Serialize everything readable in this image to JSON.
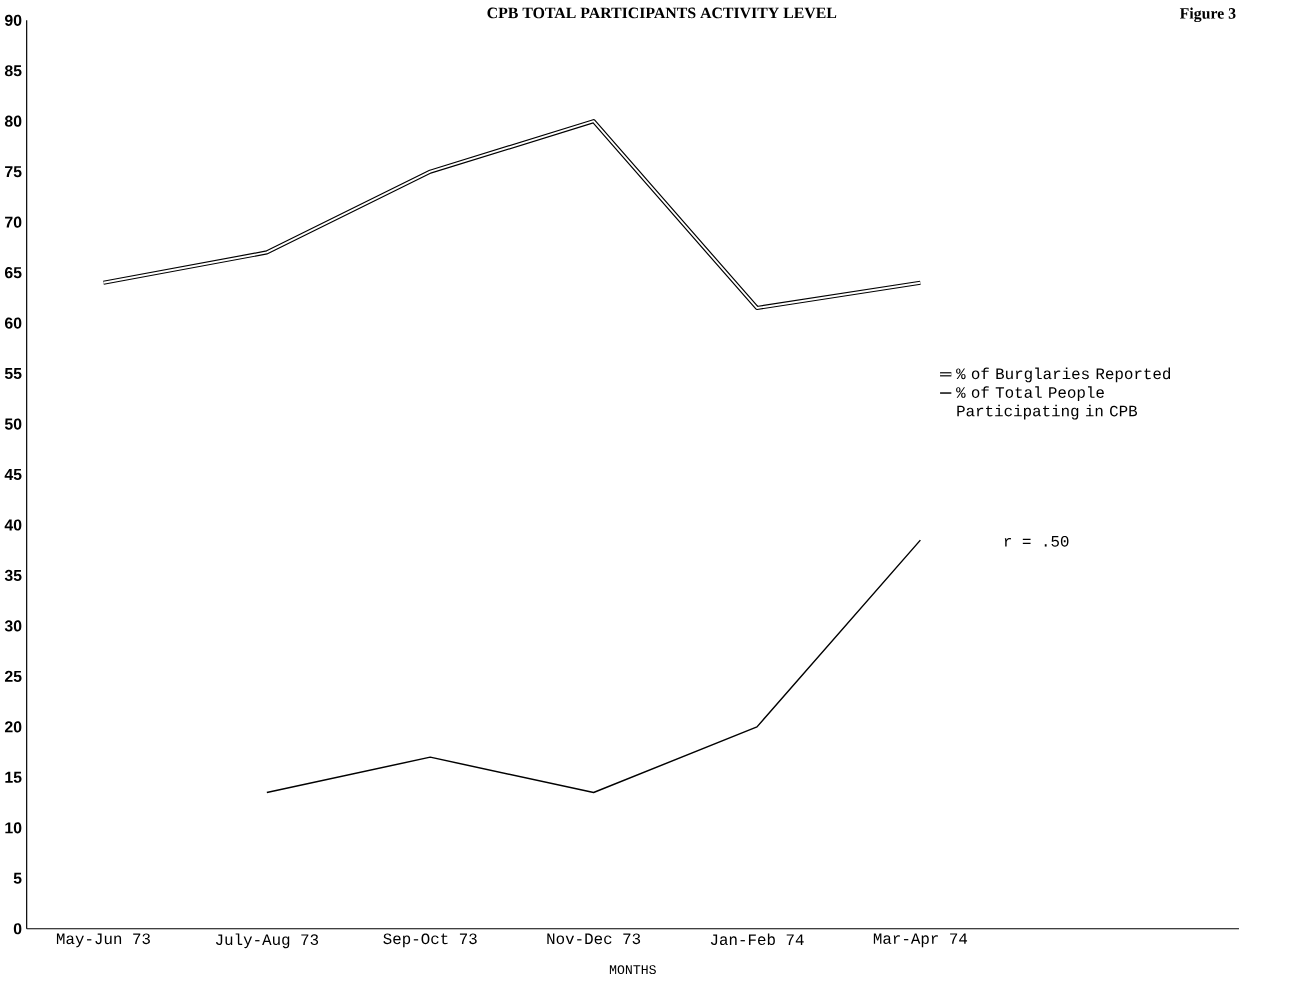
{
  "chart_data": {
    "type": "line",
    "title": "CPB TOTAL PARTICIPANTS ACTIVITY LEVEL",
    "xlabel": "MONTHS",
    "categories": [
      "May-Jun 73",
      "July-Aug 73",
      "Sep-Oct 73",
      "Nov-Dec 73",
      "Jan-Feb 74",
      "Mar-Apr 74"
    ],
    "series": [
      {
        "name": "% of Burglaries Reported",
        "color": "#000000",
        "values": [
          64,
          67,
          75,
          80,
          61.5,
          64
        ]
      },
      {
        "name": "% of Total People Participating in CPB",
        "color": "#000000",
        "values": [
          null,
          13.5,
          17,
          13.5,
          20,
          38.5
        ]
      }
    ],
    "ylim": [
      0,
      90
    ],
    "yticks": [
      0,
      5,
      10,
      15,
      20,
      25,
      30,
      35,
      40,
      45,
      50,
      55,
      60,
      65,
      70,
      75,
      80,
      85,
      90
    ],
    "grid": false,
    "legend": "right",
    "marker": "none",
    "line_style": "solid",
    "annotations": [
      "Figure 3",
      "r = .50"
    ]
  }
}
